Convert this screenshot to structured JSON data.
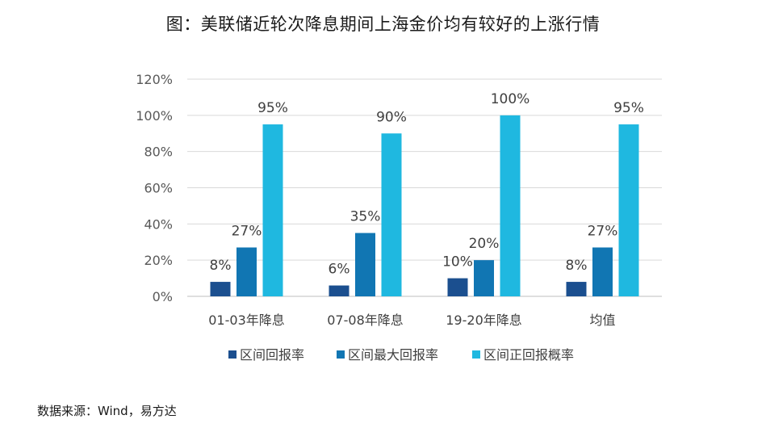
{
  "title": "图：美联储近轮次降息期间上海金价均有较好的上涨行情",
  "source": "数据来源：Wind，易方达",
  "chart_data": {
    "type": "bar",
    "categories": [
      "01-03年降息",
      "07-08年降息",
      "19-20年降息",
      "均值"
    ],
    "series": [
      {
        "name": "区间回报率",
        "values": [
          8,
          6,
          10,
          8
        ],
        "labels": [
          "8%",
          "6%",
          "10%",
          "8%"
        ],
        "color": "#1b4f8f"
      },
      {
        "name": "区间最大回报率",
        "values": [
          27,
          35,
          20,
          27
        ],
        "labels": [
          "27%",
          "35%",
          "20%",
          "27%"
        ],
        "color": "#1176b3"
      },
      {
        "name": "区间正回报概率",
        "values": [
          95,
          90,
          100,
          95
        ],
        "labels": [
          "95%",
          "90%",
          "100%",
          "95%"
        ],
        "color": "#1fb8e0"
      }
    ],
    "yticks": [
      "0%",
      "20%",
      "40%",
      "60%",
      "80%",
      "100%",
      "120%"
    ],
    "ylim": [
      0,
      120
    ],
    "grid": true,
    "legend": "bottom"
  }
}
